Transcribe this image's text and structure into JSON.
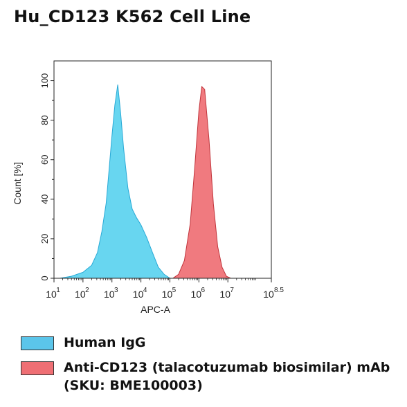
{
  "chart_data": {
    "type": "area",
    "title": "Hu_CD123 K562 Cell Line",
    "xlabel": "APC-A",
    "ylabel": "Count [%]",
    "x_scale": "log",
    "xlim_log10": [
      1,
      8.5
    ],
    "ylim": [
      0,
      110
    ],
    "x_ticks": [
      {
        "pos": 1,
        "base": "10",
        "exp": "1"
      },
      {
        "pos": 2,
        "base": "10",
        "exp": "2"
      },
      {
        "pos": 3,
        "base": "10",
        "exp": "3"
      },
      {
        "pos": 4,
        "base": "10",
        "exp": "4"
      },
      {
        "pos": 5,
        "base": "10",
        "exp": "5"
      },
      {
        "pos": 6,
        "base": "10",
        "exp": "6"
      },
      {
        "pos": 7,
        "base": "10",
        "exp": "7"
      },
      {
        "pos": 8.5,
        "base": "10",
        "exp": "8.5"
      }
    ],
    "y_ticks": [
      0,
      20,
      40,
      60,
      80,
      100
    ],
    "series": [
      {
        "name": "Human IgG",
        "fill": "#5bd3ef",
        "stroke": "#28a9d6",
        "log10_x": [
          1.2,
          1.6,
          2.0,
          2.3,
          2.5,
          2.65,
          2.8,
          2.9,
          3.0,
          3.1,
          3.2,
          3.3,
          3.4,
          3.55,
          3.7,
          3.85,
          4.0,
          4.2,
          4.4,
          4.6,
          4.8,
          5.0
        ],
        "values": [
          0,
          1,
          3,
          7,
          13,
          24,
          38,
          55,
          72,
          88,
          98,
          84,
          66,
          46,
          35,
          31,
          27,
          21,
          13,
          6,
          2,
          0
        ]
      },
      {
        "name": "Anti-CD123 (talacotuzumab biosimilar) mAb (SKU: BME100003)",
        "fill": "#ef6f74",
        "stroke": "#c0343b",
        "log10_x": [
          5.1,
          5.3,
          5.5,
          5.7,
          5.85,
          6.0,
          6.1,
          6.2,
          6.35,
          6.5,
          6.65,
          6.8,
          6.95,
          7.1
        ],
        "values": [
          0,
          2,
          9,
          28,
          55,
          85,
          97,
          96,
          70,
          38,
          16,
          6,
          1,
          0
        ]
      }
    ]
  },
  "legend": [
    {
      "label": "Human IgG",
      "color": "#5bc5ea"
    },
    {
      "label": "Anti-CD123 (talacotuzumab biosimilar) mAb (SKU: BME100003)",
      "color": "#ef6f74"
    }
  ]
}
